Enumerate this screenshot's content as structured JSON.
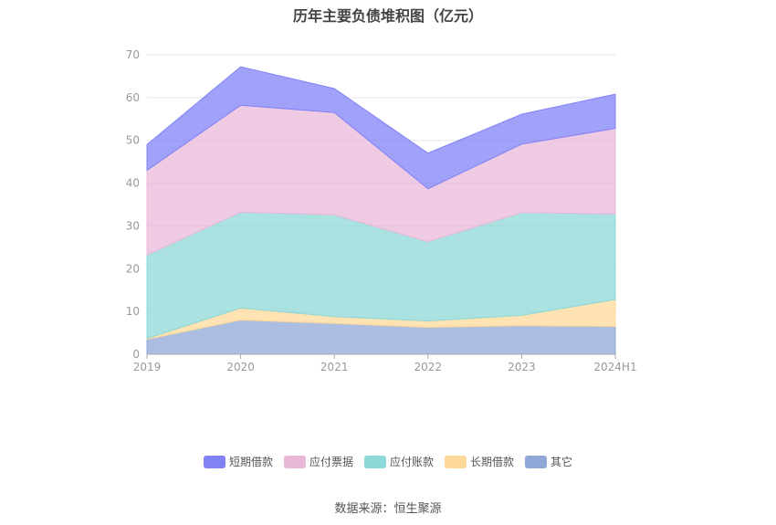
{
  "chart_data": {
    "type": "area",
    "stacked": true,
    "title": "历年主要负债堆积图（亿元）",
    "categories": [
      "2019",
      "2020",
      "2021",
      "2022",
      "2023",
      "2024H1"
    ],
    "ylim": [
      0,
      70
    ],
    "yticks": [
      0,
      10,
      20,
      30,
      40,
      50,
      60,
      70
    ],
    "grid": true,
    "legend_position": "bottom",
    "series": [
      {
        "name": "其它",
        "color": "#8fa8d8",
        "values": [
          3.5,
          8.0,
          7.2,
          6.3,
          6.7,
          6.5
        ]
      },
      {
        "name": "长期借款",
        "color": "#ffd999",
        "values": [
          0.2,
          2.8,
          1.6,
          1.5,
          2.4,
          6.3
        ]
      },
      {
        "name": "应付账款",
        "color": "#8dd8d8",
        "values": [
          19.5,
          22.4,
          23.8,
          18.5,
          24.0,
          20.0
        ]
      },
      {
        "name": "应付票据",
        "color": "#e9b8d9",
        "values": [
          19.8,
          25.0,
          23.9,
          12.4,
          16.0,
          20.0
        ]
      },
      {
        "name": "短期借款",
        "color": "#8082f6",
        "values": [
          6.0,
          9.0,
          5.6,
          8.3,
          7.0,
          8.0
        ]
      }
    ]
  },
  "legend_order": [
    "短期借款",
    "应付票据",
    "应付账款",
    "长期借款",
    "其它"
  ],
  "source": "数据来源：恒生聚源"
}
